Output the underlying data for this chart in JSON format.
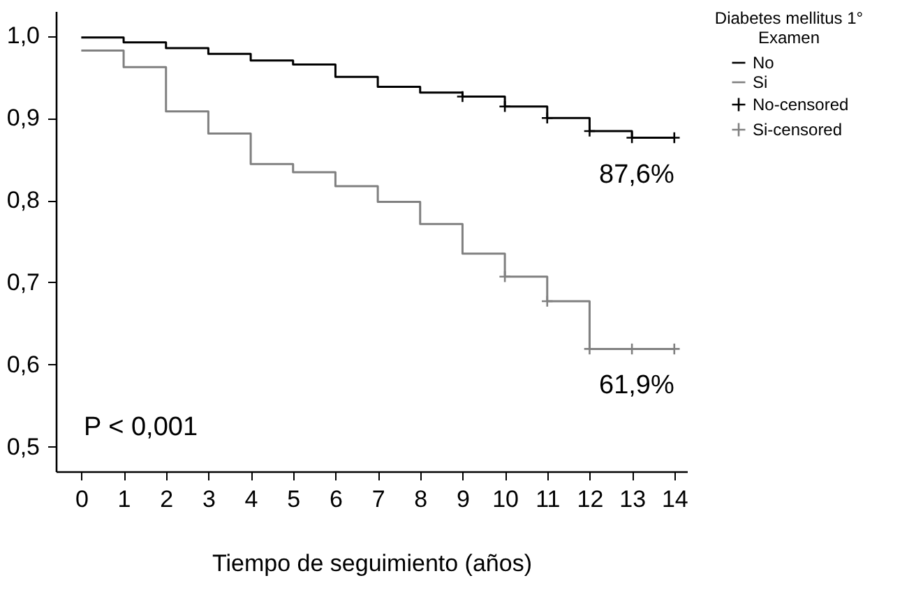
{
  "chart_data": {
    "type": "step",
    "xlabel": "Tiempo de seguimiento (años)",
    "legend_title": "Diabetes mellitus 1° Examen",
    "legend": "top right",
    "x": [
      0,
      1,
      2,
      3,
      4,
      5,
      6,
      7,
      8,
      9,
      10,
      11,
      12,
      13,
      14
    ],
    "series": [
      {
        "name": "No",
        "color": "#000000",
        "values": [
          0.998,
          0.992,
          0.985,
          0.978,
          0.97,
          0.965,
          0.95,
          0.938,
          0.931,
          0.926,
          0.914,
          0.9,
          0.884,
          0.876,
          0.876
        ]
      },
      {
        "name": "Si",
        "color": "#808080",
        "values": [
          0.982,
          0.962,
          0.908,
          0.881,
          0.844,
          0.834,
          0.817,
          0.798,
          0.771,
          0.735,
          0.707,
          0.677,
          0.619,
          0.619,
          0.619
        ]
      },
      {
        "name": "No-censored",
        "type": "scatter",
        "marker": "cross",
        "color": "#000000",
        "x": [
          9,
          10,
          11,
          12,
          13,
          14
        ],
        "values": [
          0.926,
          0.914,
          0.9,
          0.884,
          0.876,
          0.876
        ]
      },
      {
        "name": "Si-censored",
        "type": "scatter",
        "marker": "cross",
        "color": "#808080",
        "x": [
          10,
          11,
          12,
          13,
          14
        ],
        "values": [
          0.707,
          0.677,
          0.619,
          0.619,
          0.619
        ]
      }
    ],
    "xlim": [
      -0.6,
      14.3
    ],
    "xticks": [
      0,
      1,
      2,
      3,
      4,
      5,
      6,
      7,
      8,
      9,
      10,
      11,
      12,
      13,
      14
    ],
    "ylim": [
      0.47,
      1.03
    ],
    "yticks": [
      {
        "value": 0.5,
        "label": "0,5"
      },
      {
        "value": 0.6,
        "label": "0,6"
      },
      {
        "value": 0.7,
        "label": "0,7"
      },
      {
        "value": 0.8,
        "label": "0,8"
      },
      {
        "value": 0.9,
        "label": "0,9"
      },
      {
        "value": 1.0,
        "label": "1,0"
      }
    ],
    "grid": false,
    "annotations": [
      {
        "text": "87,6%",
        "x": 14,
        "y": 0.876
      },
      {
        "text": "61,9%",
        "x": 14,
        "y": 0.619
      },
      "P < 0,001"
    ]
  }
}
